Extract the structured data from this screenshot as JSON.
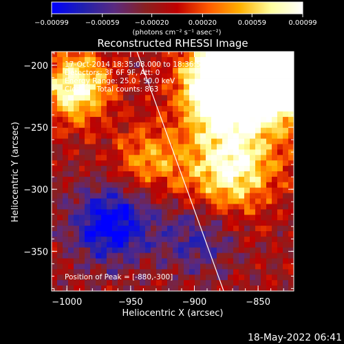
{
  "chart_data": {
    "type": "heatmap",
    "title": "Reconstructed RHESSI Image",
    "xlabel": "Heliocentric X (arcsec)",
    "ylabel": "Heliocentric Y (arcsec)",
    "xlim": [
      -1012,
      -822
    ],
    "ylim": [
      -382,
      -189
    ],
    "x_ticks": [
      {
        "value": -1000,
        "label": "−1000"
      },
      {
        "value": -950,
        "label": "−950"
      },
      {
        "value": -900,
        "label": "−900"
      },
      {
        "value": -850,
        "label": "−850"
      }
    ],
    "y_ticks": [
      {
        "value": -200,
        "label": "−200"
      },
      {
        "value": -250,
        "label": "−250"
      },
      {
        "value": -300,
        "label": "−300"
      },
      {
        "value": -350,
        "label": "−350"
      }
    ],
    "colorbar": {
      "range": [
        -0.00099,
        0.00099
      ],
      "tick_values": [
        -0.00099,
        -0.00059,
        -0.0002,
        0.0002,
        0.00059,
        0.00099
      ],
      "tick_labels": [
        "−0.00099",
        "−0.00059",
        "−0.00020",
        "0.00020",
        "0.00059",
        "0.00099"
      ],
      "unit_label": "(photons cm⁻² s⁻¹ asec⁻²)",
      "colors": [
        "#0000ff",
        "#2020b0",
        "#5a2a80",
        "#8a2020",
        "#c00000",
        "#ff5a00",
        "#ffb000",
        "#ffffa0",
        "#ffffff"
      ]
    },
    "annotations": [
      "17-Oct-2014 18:35:08.000 to 18:36:52.000",
      "Detectors: 3F 6F 9F, Att: 0",
      "Energy Range: 25.0 - 50.0 keV",
      "Clean     Total counts: 863",
      "Position of Peak = [-880,-300]"
    ],
    "peak": {
      "x": -880,
      "y": -300
    },
    "limb_line": [
      {
        "x": -945,
        "y": -189
      },
      {
        "x": -877,
        "y": -382
      }
    ]
  },
  "footer": {
    "timestamp": "18-May-2022 06:41"
  }
}
